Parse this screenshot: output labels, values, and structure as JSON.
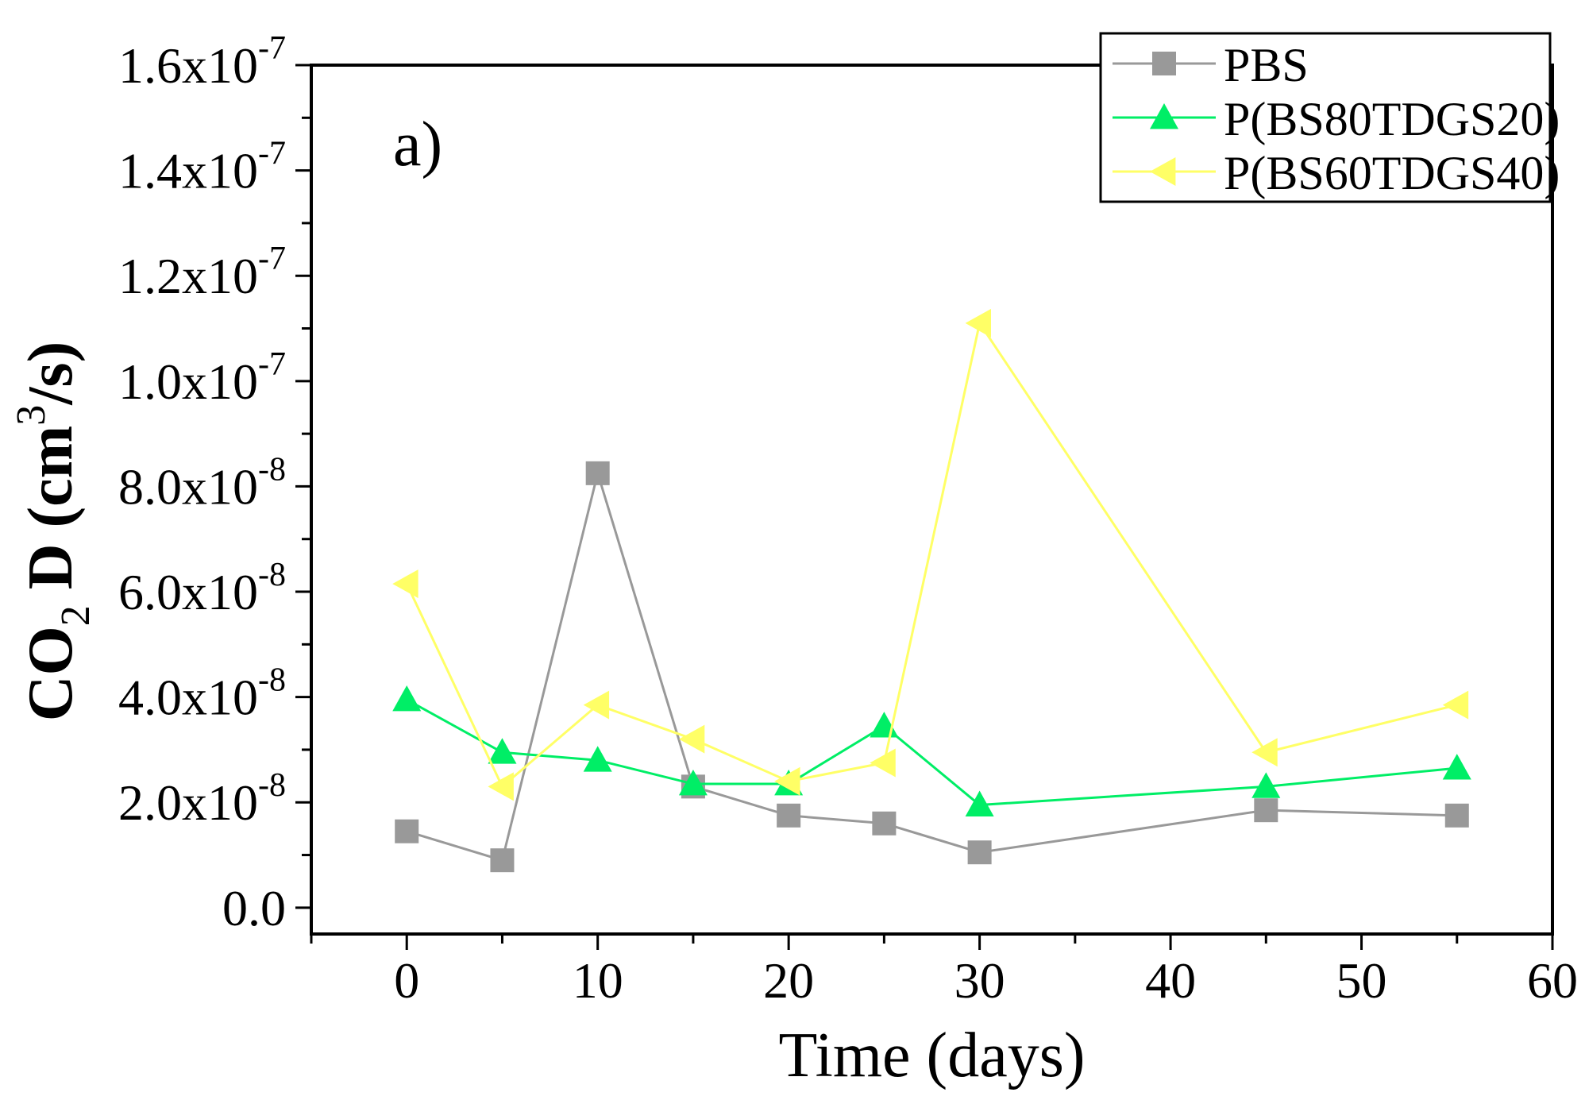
{
  "chart_data": {
    "type": "line",
    "panel_label": "a)",
    "xlabel": "Time (days)",
    "ylabel": {
      "prefix": "CO",
      "subscript": "2",
      "middle": " D (cm",
      "superscript": "3",
      "suffix": "/s)"
    },
    "xlim": [
      -5,
      60
    ],
    "ylim": [
      -5e-09,
      1.6e-07
    ],
    "x_ticks": [
      0,
      10,
      20,
      30,
      40,
      50,
      60
    ],
    "x_tick_labels": [
      "0",
      "10",
      "20",
      "30",
      "40",
      "50",
      "60"
    ],
    "x_minor_step": 5,
    "y_ticks": [
      {
        "value": 0,
        "mantissa": "0.0",
        "exp": ""
      },
      {
        "value": 2e-08,
        "mantissa": "2.0x10",
        "exp": "-8"
      },
      {
        "value": 4e-08,
        "mantissa": "4.0x10",
        "exp": "-8"
      },
      {
        "value": 6e-08,
        "mantissa": "6.0x10",
        "exp": "-8"
      },
      {
        "value": 8e-08,
        "mantissa": "8.0x10",
        "exp": "-8"
      },
      {
        "value": 1e-07,
        "mantissa": "1.0x10",
        "exp": "-7"
      },
      {
        "value": 1.2e-07,
        "mantissa": "1.2x10",
        "exp": "-7"
      },
      {
        "value": 1.4e-07,
        "mantissa": "1.4x10",
        "exp": "-7"
      },
      {
        "value": 1.6e-07,
        "mantissa": "1.6x10",
        "exp": "-7"
      }
    ],
    "y_minor_step": 1e-08,
    "legend_position": "top-right",
    "series": [
      {
        "name": "PBS",
        "color": "#999999",
        "marker": "square",
        "x": [
          0,
          5,
          10,
          15,
          20,
          25,
          30,
          45,
          55
        ],
        "values": [
          1.45e-08,
          9e-09,
          8.25e-08,
          2.3e-08,
          1.75e-08,
          1.6e-08,
          1.05e-08,
          1.85e-08,
          1.75e-08
        ]
      },
      {
        "name": "P(BS80TDGS20)",
        "color": "#00ee66",
        "marker": "triangle-up",
        "x": [
          0,
          5,
          10,
          15,
          20,
          25,
          30,
          45,
          55
        ],
        "values": [
          3.95e-08,
          2.95e-08,
          2.8e-08,
          2.35e-08,
          2.35e-08,
          3.45e-08,
          1.95e-08,
          2.3e-08,
          2.65e-08
        ]
      },
      {
        "name": "P(BS60TDGS40)",
        "color": "#ffff66",
        "marker": "triangle-left",
        "x": [
          0,
          5,
          10,
          15,
          20,
          25,
          30,
          45,
          55
        ],
        "values": [
          6.15e-08,
          2.3e-08,
          3.85e-08,
          3.2e-08,
          2.4e-08,
          2.75e-08,
          1.11e-07,
          2.95e-08,
          3.85e-08
        ]
      }
    ]
  }
}
